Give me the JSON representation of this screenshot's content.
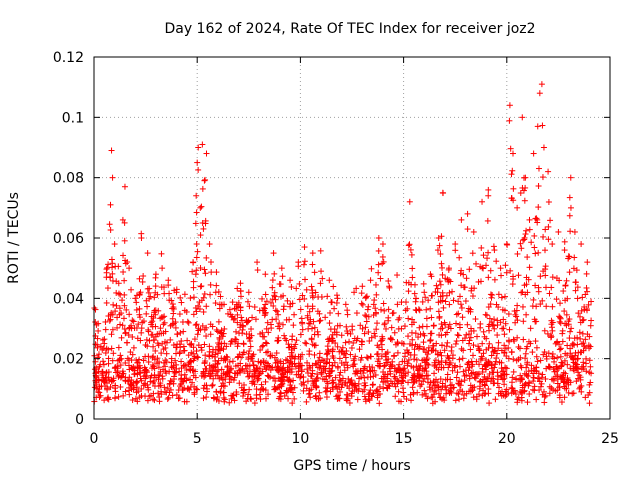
{
  "chart_data": {
    "type": "scatter",
    "title": "Day 162 of 2024, Rate Of TEC Index for receiver joz2",
    "xlabel": "GPS time / hours",
    "ylabel": "ROTI / TECUs",
    "xlim": [
      0,
      25
    ],
    "ylim": [
      0,
      0.12
    ],
    "x_ticks": [
      0,
      5,
      10,
      15,
      20,
      25
    ],
    "x_tick_labels": [
      "0",
      "5",
      "10",
      "15",
      "20",
      "25"
    ],
    "y_ticks": [
      0,
      0.02,
      0.04,
      0.06,
      0.08,
      0.1,
      0.12
    ],
    "y_tick_labels": [
      "0",
      "0.02",
      "0.04",
      "0.06",
      "0.08",
      "0.1",
      "0.12"
    ],
    "grid": true,
    "marker": "+",
    "color": "#ff0000",
    "series": [
      {
        "name": "ROTI",
        "points": [
          [
            0.1,
            0.012
          ],
          [
            0.3,
            0.018
          ],
          [
            0.5,
            0.025
          ],
          [
            0.6,
            0.047
          ],
          [
            0.8,
            0.033
          ],
          [
            0.8,
            0.071
          ],
          [
            0.85,
            0.089
          ],
          [
            0.9,
            0.08
          ],
          [
            1.0,
            0.058
          ],
          [
            1.2,
            0.045
          ],
          [
            1.4,
            0.066
          ],
          [
            1.5,
            0.077
          ],
          [
            1.7,
            0.05
          ],
          [
            2.0,
            0.04
          ],
          [
            2.3,
            0.06
          ],
          [
            2.6,
            0.055
          ],
          [
            3.0,
            0.048
          ],
          [
            3.3,
            0.05
          ],
          [
            3.6,
            0.046
          ],
          [
            4.0,
            0.042
          ],
          [
            4.4,
            0.036
          ],
          [
            4.8,
            0.052
          ],
          [
            4.95,
            0.074
          ],
          [
            5.0,
            0.085
          ],
          [
            5.05,
            0.09
          ],
          [
            5.15,
            0.07
          ],
          [
            5.25,
            0.091
          ],
          [
            5.35,
            0.079
          ],
          [
            5.45,
            0.088
          ],
          [
            5.6,
            0.058
          ],
          [
            5.9,
            0.042
          ],
          [
            6.3,
            0.038
          ],
          [
            6.7,
            0.034
          ],
          [
            7.1,
            0.036
          ],
          [
            7.5,
            0.042
          ],
          [
            7.9,
            0.052
          ],
          [
            8.3,
            0.048
          ],
          [
            8.7,
            0.055
          ],
          [
            9.1,
            0.05
          ],
          [
            9.5,
            0.046
          ],
          [
            9.9,
            0.052
          ],
          [
            10.2,
            0.057
          ],
          [
            10.6,
            0.055
          ],
          [
            11.0,
            0.049
          ],
          [
            11.4,
            0.046
          ],
          [
            11.8,
            0.04
          ],
          [
            12.2,
            0.038
          ],
          [
            12.6,
            0.042
          ],
          [
            13.0,
            0.044
          ],
          [
            13.4,
            0.046
          ],
          [
            13.8,
            0.06
          ],
          [
            14.0,
            0.058
          ],
          [
            14.3,
            0.044
          ],
          [
            14.7,
            0.038
          ],
          [
            15.1,
            0.036
          ],
          [
            15.3,
            0.072
          ],
          [
            15.6,
            0.04
          ],
          [
            16.0,
            0.042
          ],
          [
            16.3,
            0.048
          ],
          [
            16.7,
            0.06
          ],
          [
            16.9,
            0.075
          ],
          [
            17.2,
            0.05
          ],
          [
            17.5,
            0.058
          ],
          [
            17.8,
            0.066
          ],
          [
            18.1,
            0.068
          ],
          [
            18.4,
            0.062
          ],
          [
            18.8,
            0.072
          ],
          [
            19.1,
            0.074
          ],
          [
            19.4,
            0.056
          ],
          [
            19.7,
            0.05
          ],
          [
            20.0,
            0.058
          ],
          [
            20.15,
            0.104
          ],
          [
            20.3,
            0.088
          ],
          [
            20.5,
            0.07
          ],
          [
            20.75,
            0.1
          ],
          [
            20.9,
            0.08
          ],
          [
            21.1,
            0.066
          ],
          [
            21.3,
            0.088
          ],
          [
            21.5,
            0.097
          ],
          [
            21.6,
            0.108
          ],
          [
            21.7,
            0.111
          ],
          [
            21.8,
            0.09
          ],
          [
            22.0,
            0.082
          ],
          [
            22.2,
            0.058
          ],
          [
            22.5,
            0.062
          ],
          [
            22.8,
            0.056
          ],
          [
            23.1,
            0.08
          ],
          [
            23.3,
            0.062
          ],
          [
            23.6,
            0.058
          ],
          [
            23.9,
            0.052
          ]
        ]
      }
    ]
  }
}
